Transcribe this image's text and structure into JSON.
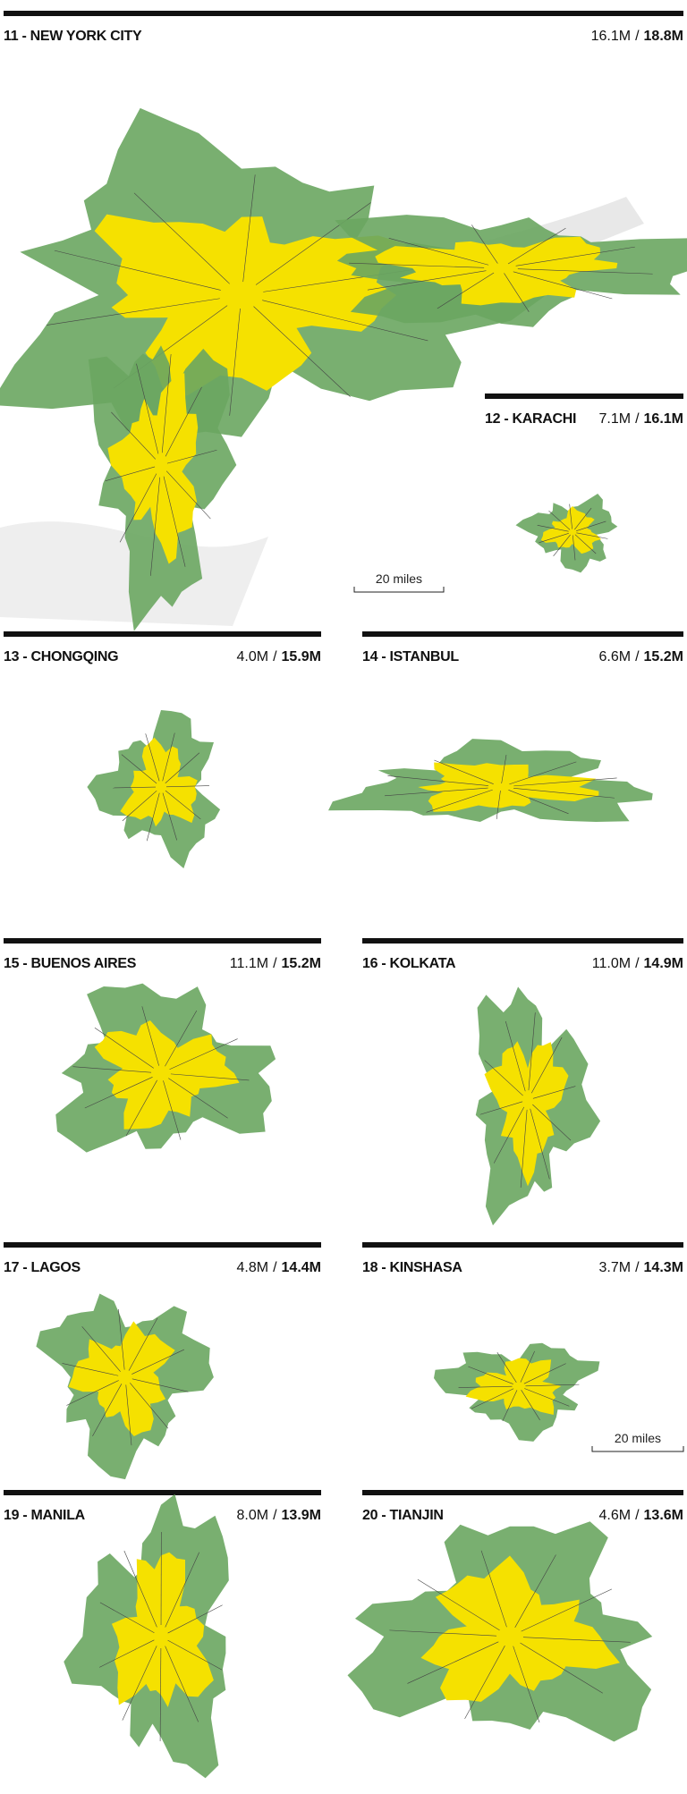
{
  "separator": "/",
  "panels": [
    {
      "title": "11 - NEW YORK CITY",
      "population_1": "16.1M",
      "population_2": "18.8M"
    },
    {
      "title": "12 - KARACHI",
      "population_1": "7.1M",
      "population_2": "16.1M"
    },
    {
      "title": "13 - CHONGQING",
      "population_1": "4.0M",
      "population_2": "15.9M"
    },
    {
      "title": "14 - ISTANBUL",
      "population_1": "6.6M",
      "population_2": "15.2M"
    },
    {
      "title": "15 - BUENOS AIRES",
      "population_1": "11.1M",
      "population_2": "15.2M"
    },
    {
      "title": "16 - KOLKATA",
      "population_1": "11.0M",
      "population_2": "14.9M"
    },
    {
      "title": "17 - LAGOS",
      "population_1": "4.8M",
      "population_2": "14.4M"
    },
    {
      "title": "18 - KINSHASA",
      "population_1": "3.7M",
      "population_2": "14.3M"
    },
    {
      "title": "19 - MANILA",
      "population_1": "8.0M",
      "population_2": "13.9M"
    },
    {
      "title": "20 - TIANJIN",
      "population_1": "4.6M",
      "population_2": "13.6M"
    }
  ],
  "scale_bars": [
    "20 miles",
    "20 miles"
  ]
}
